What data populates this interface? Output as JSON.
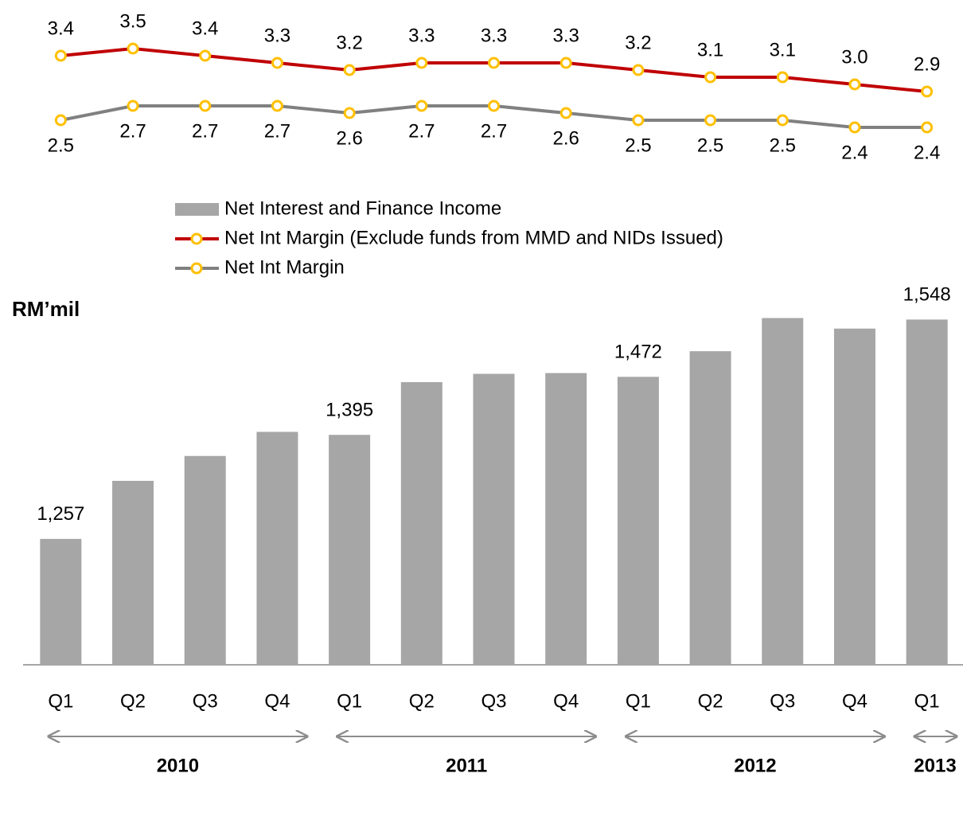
{
  "chart_data": {
    "type": "bar",
    "y_axis_label": "RM’mil",
    "categories": [
      "Q1",
      "Q2",
      "Q3",
      "Q4",
      "Q1",
      "Q2",
      "Q3",
      "Q4",
      "Q1",
      "Q2",
      "Q3",
      "Q4",
      "Q1"
    ],
    "groups": [
      {
        "label": "2010",
        "categories": 4
      },
      {
        "label": "2011",
        "categories": 4
      },
      {
        "label": "2012",
        "categories": 4
      },
      {
        "label": "2013",
        "categories": 1
      }
    ],
    "ylim": [
      1090,
      1560
    ],
    "y2lim": [
      2.2,
      3.7
    ],
    "series": [
      {
        "name": "Net Interest and Finance Income",
        "type": "bar",
        "color": "#a6a6a6",
        "values": [
          1257,
          1334,
          1367,
          1399,
          1395,
          1465,
          1476,
          1477,
          1472,
          1506,
          1550,
          1536,
          1548
        ],
        "value_labels": [
          "1,257",
          null,
          null,
          null,
          "1,395",
          null,
          null,
          null,
          "1,472",
          null,
          null,
          null,
          "1,548"
        ]
      },
      {
        "name": "Net Int Margin (Exclude funds from MMD and NIDs Issued)",
        "type": "line",
        "axis": "y2",
        "color": "#c00000",
        "marker_color": "#ffc000",
        "values": [
          3.4,
          3.5,
          3.4,
          3.3,
          3.2,
          3.3,
          3.3,
          3.3,
          3.2,
          3.1,
          3.1,
          3.0,
          2.9
        ],
        "value_labels": [
          "3.4",
          "3.5",
          "3.4",
          "3.3",
          "3.2",
          "3.3",
          "3.3",
          "3.3",
          "3.2",
          "3.1",
          "3.1",
          "3.0",
          "2.9"
        ]
      },
      {
        "name": "Net Int Margin",
        "type": "line",
        "axis": "y2",
        "color": "#808080",
        "marker_color": "#ffc000",
        "values": [
          2.5,
          2.7,
          2.7,
          2.7,
          2.6,
          2.7,
          2.7,
          2.6,
          2.5,
          2.5,
          2.5,
          2.4,
          2.4
        ],
        "value_labels": [
          "2.5",
          "2.7",
          "2.7",
          "2.7",
          "2.6",
          "2.7",
          "2.7",
          "2.6",
          "2.5",
          "2.5",
          "2.5",
          "2.4",
          "2.4"
        ]
      }
    ]
  }
}
